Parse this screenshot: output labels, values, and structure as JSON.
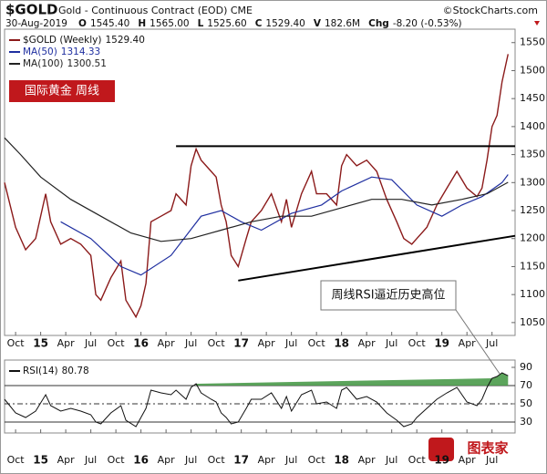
{
  "chart_data": [
    {
      "type": "line",
      "title": "$GOLD",
      "subtitle": "Gold - Continuous Contract (EOD) CME",
      "source": "©StockCharts.com",
      "date": "30-Aug-2019",
      "quote": [
        {
          "name": "O",
          "value": 1545.4,
          "label": "1545.40"
        },
        {
          "name": "H",
          "value": 1565,
          "label": "1565.00"
        },
        {
          "name": "L",
          "value": 1525.6,
          "label": "1525.60"
        },
        {
          "name": "C",
          "value": 1529.4,
          "label": "1529.40"
        },
        {
          "name": "V",
          "value": 182600000,
          "label": "182.6M"
        },
        {
          "name": "Chg",
          "value": -8.2,
          "label": "-8.20 (-0.53%)"
        }
      ],
      "tag": "国际黄金  周线",
      "annotation": "周线RSI逼近历史高位",
      "watermark": "图表家",
      "xlim": [
        2014.64,
        2019.73
      ],
      "xticks": [
        {
          "value": 2014.75,
          "label": "Oct"
        },
        {
          "value": 2015,
          "label": "15"
        },
        {
          "value": 2015.25,
          "label": "Apr"
        },
        {
          "value": 2015.5,
          "label": "Jul"
        },
        {
          "value": 2015.75,
          "label": "Oct"
        },
        {
          "value": 2016,
          "label": "16"
        },
        {
          "value": 2016.25,
          "label": "Apr"
        },
        {
          "value": 2016.5,
          "label": "Jul"
        },
        {
          "value": 2016.75,
          "label": "Oct"
        },
        {
          "value": 2017,
          "label": "17"
        },
        {
          "value": 2017.25,
          "label": "Apr"
        },
        {
          "value": 2017.5,
          "label": "Jul"
        },
        {
          "value": 2017.75,
          "label": "Oct"
        },
        {
          "value": 2018,
          "label": "18"
        },
        {
          "value": 2018.25,
          "label": "Apr"
        },
        {
          "value": 2018.5,
          "label": "Jul"
        },
        {
          "value": 2018.75,
          "label": "Oct"
        },
        {
          "value": 2019,
          "label": "19"
        },
        {
          "value": 2019.25,
          "label": "Apr"
        },
        {
          "value": 2019.5,
          "label": "Jul"
        }
      ],
      "ylim": [
        1027,
        1574
      ],
      "yticks": [
        1050,
        1100,
        1150,
        1200,
        1250,
        1300,
        1350,
        1400,
        1450,
        1500,
        1550
      ],
      "series": [
        {
          "name": "$GOLD (Weekly)",
          "last": {
            "value": 1529.4,
            "label": "1529.40"
          },
          "color": "#8b1a1a",
          "width": 1.4,
          "x": [
            2014.64,
            2014.75,
            2014.85,
            2014.95,
            2015.05,
            2015.1,
            2015.2,
            2015.3,
            2015.4,
            2015.5,
            2015.55,
            2015.6,
            2015.7,
            2015.8,
            2015.85,
            2015.95,
            2016.0,
            2016.05,
            2016.1,
            2016.2,
            2016.3,
            2016.35,
            2016.45,
            2016.5,
            2016.55,
            2016.6,
            2016.7,
            2016.75,
            2016.8,
            2016.85,
            2016.9,
            2016.97,
            2017.05,
            2017.1,
            2017.2,
            2017.3,
            2017.4,
            2017.45,
            2017.5,
            2017.6,
            2017.7,
            2017.75,
            2017.85,
            2017.95,
            2018.0,
            2018.05,
            2018.15,
            2018.25,
            2018.35,
            2018.45,
            2018.55,
            2018.62,
            2018.7,
            2018.75,
            2018.85,
            2018.95,
            2019.05,
            2019.15,
            2019.25,
            2019.35,
            2019.4,
            2019.45,
            2019.5,
            2019.55,
            2019.6,
            2019.66
          ],
          "values": [
            1300,
            1220,
            1180,
            1200,
            1280,
            1230,
            1190,
            1200,
            1190,
            1170,
            1100,
            1090,
            1130,
            1160,
            1090,
            1060,
            1080,
            1120,
            1230,
            1240,
            1250,
            1280,
            1260,
            1330,
            1360,
            1340,
            1320,
            1310,
            1260,
            1230,
            1170,
            1150,
            1200,
            1230,
            1250,
            1280,
            1230,
            1270,
            1220,
            1280,
            1320,
            1280,
            1280,
            1260,
            1330,
            1350,
            1330,
            1340,
            1320,
            1270,
            1230,
            1200,
            1190,
            1200,
            1220,
            1260,
            1290,
            1320,
            1290,
            1275,
            1290,
            1340,
            1400,
            1420,
            1480,
            1529.4
          ]
        },
        {
          "name": "MA(50)",
          "last": {
            "value": 1314.33,
            "label": "1314.33"
          },
          "color": "#1f2fa0",
          "width": 1.2,
          "x": [
            2015.2,
            2015.5,
            2015.8,
            2016.0,
            2016.3,
            2016.6,
            2016.8,
            2017.0,
            2017.2,
            2017.5,
            2017.8,
            2018.0,
            2018.3,
            2018.5,
            2018.75,
            2019.0,
            2019.2,
            2019.4,
            2019.6,
            2019.66
          ],
          "values": [
            1230,
            1200,
            1150,
            1135,
            1170,
            1240,
            1250,
            1230,
            1215,
            1245,
            1260,
            1285,
            1310,
            1305,
            1260,
            1240,
            1260,
            1275,
            1300,
            1314.33
          ]
        },
        {
          "name": "MA(100)",
          "last": {
            "value": 1300.51,
            "label": "1300.51"
          },
          "color": "#222222",
          "width": 1.2,
          "x": [
            2014.64,
            2014.8,
            2015.0,
            2015.3,
            2015.6,
            2015.9,
            2016.2,
            2016.5,
            2016.8,
            2017.1,
            2017.4,
            2017.7,
            2018.0,
            2018.3,
            2018.6,
            2018.9,
            2019.2,
            2019.45,
            2019.66
          ],
          "values": [
            1380,
            1350,
            1310,
            1270,
            1240,
            1210,
            1195,
            1200,
            1215,
            1230,
            1240,
            1240,
            1255,
            1270,
            1270,
            1260,
            1270,
            1280,
            1300.51
          ]
        },
        {
          "name": "resistance",
          "color": "#000000",
          "width": 2,
          "x": [
            2016.35,
            2019.73
          ],
          "values": [
            1365,
            1365
          ]
        },
        {
          "name": "support",
          "color": "#000000",
          "width": 2,
          "x": [
            2016.97,
            2019.73
          ],
          "values": [
            1125,
            1205
          ]
        }
      ]
    },
    {
      "type": "line",
      "xlim": [
        2014.64,
        2019.73
      ],
      "ylim": [
        18,
        98
      ],
      "yticks": [
        90,
        70,
        50,
        30
      ],
      "levels": [
        70,
        30
      ],
      "midline": 50,
      "fill_above": 70,
      "fill_color": "#4a9a4a",
      "series": [
        {
          "name": "RSI(14)",
          "last": {
            "value": 80.78,
            "label": "80.78"
          },
          "color": "#111111",
          "width": 1,
          "x": [
            2014.64,
            2014.75,
            2014.85,
            2014.95,
            2015.05,
            2015.1,
            2015.2,
            2015.3,
            2015.4,
            2015.5,
            2015.55,
            2015.6,
            2015.7,
            2015.8,
            2015.85,
            2015.95,
            2016.0,
            2016.05,
            2016.1,
            2016.2,
            2016.3,
            2016.35,
            2016.45,
            2016.5,
            2016.55,
            2016.6,
            2016.7,
            2016.75,
            2016.8,
            2016.85,
            2016.9,
            2016.97,
            2017.05,
            2017.1,
            2017.2,
            2017.3,
            2017.4,
            2017.45,
            2017.5,
            2017.6,
            2017.7,
            2017.75,
            2017.85,
            2017.95,
            2018.0,
            2018.05,
            2018.15,
            2018.25,
            2018.35,
            2018.45,
            2018.55,
            2018.62,
            2018.7,
            2018.75,
            2018.85,
            2018.95,
            2019.05,
            2019.15,
            2019.25,
            2019.35,
            2019.4,
            2019.45,
            2019.5,
            2019.55,
            2019.6,
            2019.66
          ],
          "values": [
            55,
            40,
            35,
            42,
            60,
            48,
            42,
            45,
            42,
            38,
            30,
            28,
            40,
            48,
            32,
            25,
            35,
            45,
            65,
            62,
            60,
            65,
            55,
            68,
            72,
            62,
            55,
            52,
            40,
            35,
            28,
            30,
            45,
            55,
            55,
            62,
            45,
            58,
            42,
            60,
            65,
            50,
            52,
            45,
            65,
            68,
            55,
            58,
            52,
            40,
            32,
            25,
            28,
            35,
            45,
            55,
            62,
            68,
            52,
            48,
            55,
            68,
            78,
            80,
            84,
            80.78
          ]
        }
      ]
    }
  ]
}
